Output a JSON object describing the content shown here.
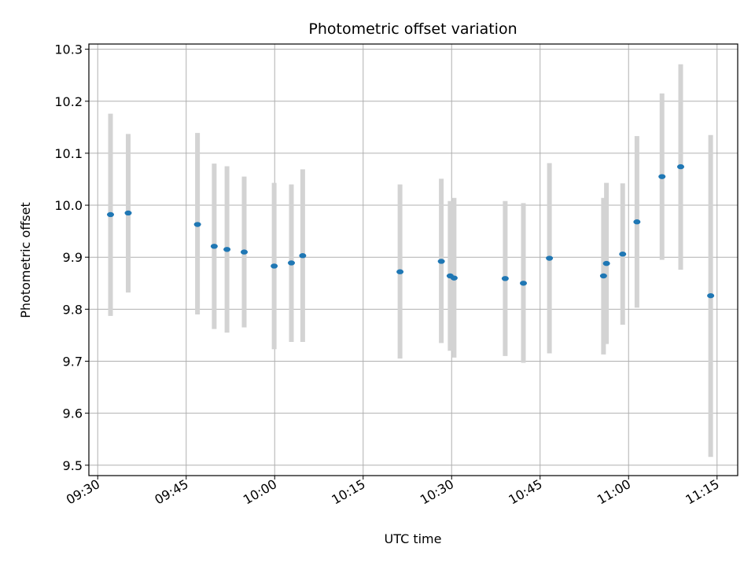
{
  "chart_data": {
    "type": "scatter",
    "title": "Photometric offset variation",
    "xlabel": "UTC time",
    "ylabel": "Photometric offset",
    "x_axis_type": "time",
    "xlim": [
      "09:28:30",
      "11:18:30"
    ],
    "ylim": [
      9.48,
      10.31
    ],
    "x_ticks": [
      "09:30",
      "09:45",
      "10:00",
      "10:15",
      "10:30",
      "10:45",
      "11:00",
      "11:15"
    ],
    "y_ticks": [
      "9.5",
      "9.6",
      "9.7",
      "9.8",
      "9.9",
      "10.0",
      "10.1",
      "10.2",
      "10.3"
    ],
    "grid": true,
    "legend": false,
    "colors": {
      "point": "#1f77b4",
      "error_bar": "#d3d3d3",
      "grid": "#b0b0b0"
    },
    "points": [
      {
        "x": "09:32:10",
        "y": 9.982,
        "err_low": 9.787,
        "err_high": 10.176
      },
      {
        "x": "09:35:10",
        "y": 9.985,
        "err_low": 9.832,
        "err_high": 10.137
      },
      {
        "x": "09:46:55",
        "y": 9.963,
        "err_low": 9.79,
        "err_high": 10.139
      },
      {
        "x": "09:49:45",
        "y": 9.921,
        "err_low": 9.762,
        "err_high": 10.08
      },
      {
        "x": "09:51:55",
        "y": 9.915,
        "err_low": 9.755,
        "err_high": 10.075
      },
      {
        "x": "09:54:50",
        "y": 9.91,
        "err_low": 9.765,
        "err_high": 10.055
      },
      {
        "x": "09:59:55",
        "y": 9.883,
        "err_low": 9.723,
        "err_high": 10.043
      },
      {
        "x": "10:02:50",
        "y": 9.889,
        "err_low": 9.737,
        "err_high": 10.04
      },
      {
        "x": "10:04:45",
        "y": 9.903,
        "err_low": 9.737,
        "err_high": 10.069
      },
      {
        "x": "10:21:15",
        "y": 9.872,
        "err_low": 9.705,
        "err_high": 10.04
      },
      {
        "x": "10:28:15",
        "y": 9.892,
        "err_low": 9.735,
        "err_high": 10.051
      },
      {
        "x": "10:29:45",
        "y": 9.864,
        "err_low": 9.72,
        "err_high": 10.008
      },
      {
        "x": "10:30:25",
        "y": 9.86,
        "err_low": 9.707,
        "err_high": 10.014
      },
      {
        "x": "10:39:05",
        "y": 9.859,
        "err_low": 9.71,
        "err_high": 10.008
      },
      {
        "x": "10:42:10",
        "y": 9.85,
        "err_low": 9.697,
        "err_high": 10.004
      },
      {
        "x": "10:46:35",
        "y": 9.898,
        "err_low": 9.715,
        "err_high": 10.081
      },
      {
        "x": "10:55:45",
        "y": 9.864,
        "err_low": 9.713,
        "err_high": 10.014
      },
      {
        "x": "10:56:15",
        "y": 9.888,
        "err_low": 9.733,
        "err_high": 10.043
      },
      {
        "x": "10:59:00",
        "y": 9.906,
        "err_low": 9.77,
        "err_high": 10.042
      },
      {
        "x": "11:01:25",
        "y": 9.968,
        "err_low": 9.803,
        "err_high": 10.133
      },
      {
        "x": "11:05:40",
        "y": 10.055,
        "err_low": 9.895,
        "err_high": 10.215
      },
      {
        "x": "11:08:50",
        "y": 10.074,
        "err_low": 9.876,
        "err_high": 10.271
      },
      {
        "x": "11:13:55",
        "y": 9.826,
        "err_low": 9.516,
        "err_high": 10.135
      }
    ]
  }
}
